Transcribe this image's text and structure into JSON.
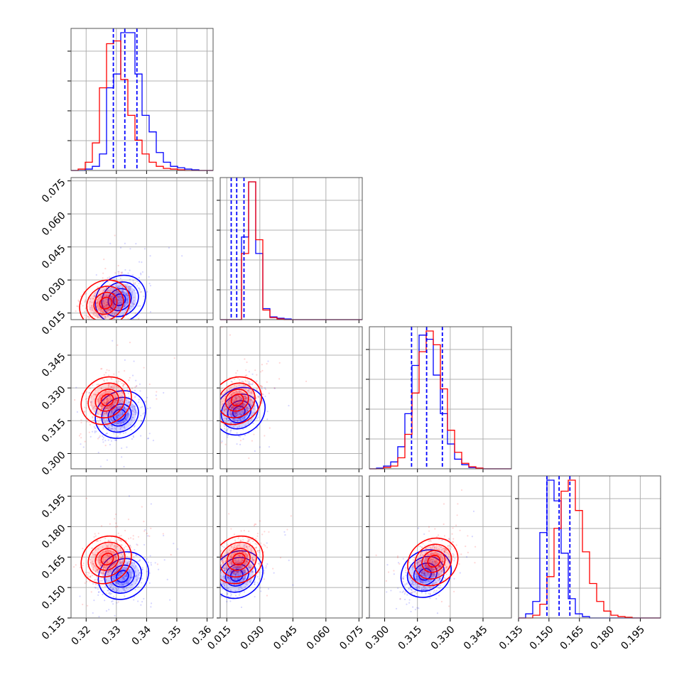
{
  "chart_data": {
    "type": "corner",
    "colors": {
      "series_a": "#0000ff",
      "series_b": "#ff0000",
      "quantile_lines": "#0000ff"
    },
    "grid": true,
    "n_parameters": 4,
    "parameters": [
      {
        "range": [
          0.315,
          0.362
        ],
        "ticks": [
          0.32,
          0.33,
          0.34,
          0.35,
          0.36
        ],
        "tick_labels": [
          "0.32",
          "0.33",
          "0.34",
          "0.35",
          "0.36"
        ]
      },
      {
        "range": [
          0.012,
          0.0765
        ],
        "ticks": [
          0.015,
          0.03,
          0.045,
          0.06,
          0.075
        ],
        "tick_labels": [
          "0.015",
          "0.030",
          "0.045",
          "0.060",
          "0.075"
        ]
      },
      {
        "range": [
          0.293,
          0.358
        ],
        "ticks": [
          0.3,
          0.315,
          0.33,
          0.345
        ],
        "tick_labels": [
          "0.300",
          "0.315",
          "0.330",
          "0.345"
        ]
      },
      {
        "range": [
          0.135,
          0.205
        ],
        "ticks": [
          0.135,
          0.15,
          0.165,
          0.18,
          0.195
        ],
        "tick_labels": [
          "0.135",
          "0.150",
          "0.165",
          "0.180",
          "0.195"
        ]
      }
    ],
    "histograms": [
      {
        "bins": [
          0.315,
          0.362
        ],
        "blue": [
          0,
          0,
          1,
          3,
          12,
          60,
          70,
          100,
          100,
          70,
          40,
          28,
          13,
          6,
          3,
          2,
          1,
          0.5,
          0,
          0
        ],
        "red": [
          0,
          1,
          6,
          20,
          60,
          92,
          94,
          66,
          40,
          22,
          12,
          6,
          3,
          1.5,
          1,
          0.5,
          0,
          0,
          0,
          0
        ],
        "quantiles": [
          0.329,
          0.3328,
          0.3368
        ]
      },
      {
        "bins": [
          0.012,
          0.0765
        ],
        "blue": [
          0,
          0,
          0,
          60,
          100,
          48,
          8,
          2,
          1,
          0.5,
          0,
          0,
          0,
          0,
          0,
          0,
          0,
          0,
          0,
          0
        ],
        "red": [
          0,
          0,
          0,
          48,
          100,
          58,
          7,
          1.5,
          0.5,
          0,
          0,
          0,
          0,
          0,
          0,
          0,
          0,
          0,
          0,
          0
        ],
        "quantiles": [
          0.017,
          0.0195,
          0.0228
        ]
      },
      {
        "bins": [
          0.293,
          0.358
        ],
        "blue": [
          0,
          0.5,
          2,
          5,
          16,
          40,
          75,
          97,
          94,
          68,
          40,
          18,
          7,
          3,
          1,
          0.5,
          0,
          0,
          0,
          0
        ],
        "red": [
          0,
          0,
          1,
          2,
          8,
          25,
          55,
          85,
          100,
          90,
          58,
          28,
          12,
          4,
          1.5,
          0.5,
          0,
          0,
          0,
          0
        ],
        "quantiles": [
          0.3123,
          0.3192,
          0.3264
        ]
      },
      {
        "bins": [
          0.135,
          0.205
        ],
        "blue": [
          0,
          3,
          12,
          62,
          100,
          85,
          47,
          14,
          3,
          1,
          0,
          0,
          0,
          0,
          0,
          0,
          0,
          0,
          0,
          0
        ],
        "red": [
          0,
          0,
          2,
          10,
          30,
          65,
          92,
          100,
          78,
          48,
          25,
          12,
          5,
          2,
          1,
          0.5,
          0,
          0,
          0,
          0
        ],
        "quantiles": [
          0.149,
          0.155,
          0.1603
        ]
      }
    ],
    "pairs": [
      {
        "x_param": 0,
        "y_param": 1,
        "blue_center": [
          0.331,
          0.021
        ],
        "red_center": [
          0.3265,
          0.0195
        ]
      },
      {
        "x_param": 0,
        "y_param": 2,
        "blue_center": [
          0.331,
          0.3175
        ],
        "red_center": [
          0.327,
          0.3245
        ]
      },
      {
        "x_param": 1,
        "y_param": 2,
        "blue_center": [
          0.0205,
          0.319
        ],
        "red_center": [
          0.0198,
          0.3245
        ]
      },
      {
        "x_param": 0,
        "y_param": 3,
        "blue_center": [
          0.332,
          0.1555
        ],
        "red_center": [
          0.327,
          0.164
        ]
      },
      {
        "x_param": 1,
        "y_param": 3,
        "blue_center": [
          0.0195,
          0.156
        ],
        "red_center": [
          0.0205,
          0.164
        ]
      },
      {
        "x_param": 2,
        "y_param": 3,
        "blue_center": [
          0.3185,
          0.1565
        ],
        "red_center": [
          0.3225,
          0.163
        ]
      }
    ]
  }
}
